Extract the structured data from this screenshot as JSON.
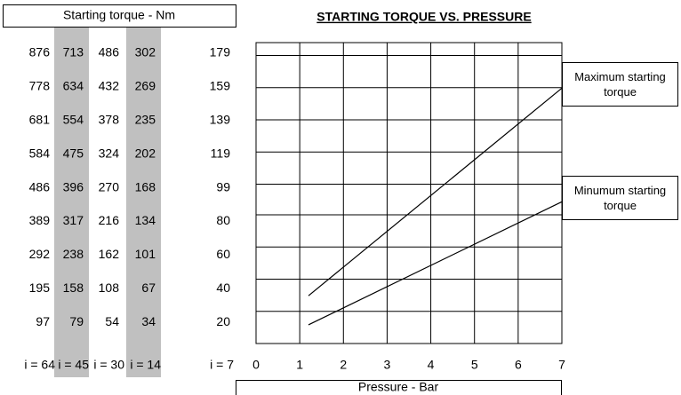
{
  "chart_data": {
    "type": "line",
    "title": "STARTING TORQUE VS. PRESSURE",
    "table_title": "Starting torque - Nm",
    "xlabel": "Pressure - Bar",
    "xlim": [
      0,
      7
    ],
    "xticks": [
      0,
      1,
      2,
      3,
      4,
      5,
      6,
      7
    ],
    "ylim": [
      0,
      187
    ],
    "grid": true,
    "columns": [
      {
        "label": "i = 64",
        "values": [
          876,
          778,
          681,
          584,
          486,
          389,
          292,
          195,
          97
        ],
        "shaded": false
      },
      {
        "label": "i = 45",
        "values": [
          713,
          634,
          554,
          475,
          396,
          317,
          238,
          158,
          79
        ],
        "shaded": true
      },
      {
        "label": "i = 30",
        "values": [
          486,
          432,
          378,
          324,
          270,
          216,
          162,
          108,
          54
        ],
        "shaded": false
      },
      {
        "label": "i = 14",
        "values": [
          302,
          269,
          235,
          202,
          168,
          134,
          101,
          67,
          34
        ],
        "shaded": true
      },
      {
        "label": "i = 7",
        "values": [
          179,
          159,
          139,
          119,
          99,
          80,
          60,
          40,
          20
        ],
        "shaded": false
      }
    ],
    "series": [
      {
        "name": "Maximum starting torque",
        "color": "#000000",
        "x": [
          1.2,
          7
        ],
        "values": [
          29.7,
          158.7
        ]
      },
      {
        "name": "Minumum starting torque",
        "color": "#000000",
        "x": [
          1.2,
          7
        ],
        "values": [
          11.6,
          88.1
        ]
      }
    ]
  }
}
